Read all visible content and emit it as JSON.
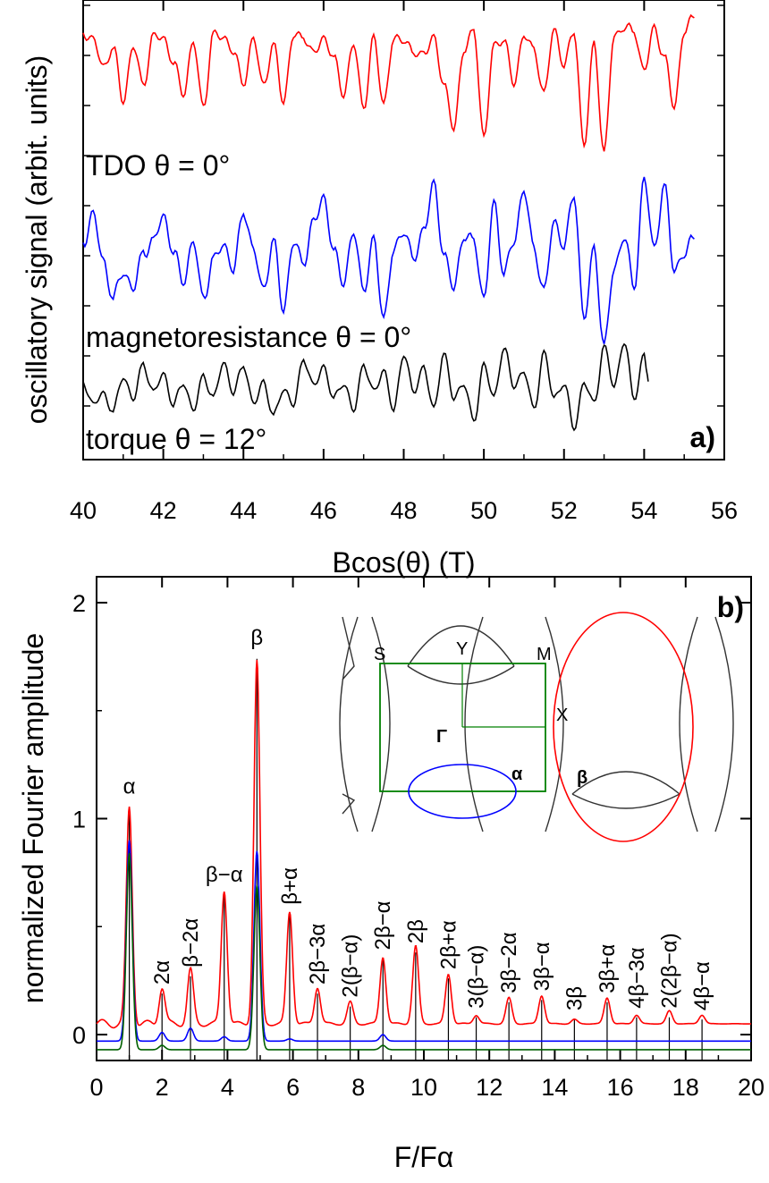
{
  "chart_data": [
    {
      "panel": "a)",
      "type": "line",
      "xlabel": "Bcos(θ) (T)",
      "ylabel": "oscillatory signal (arbit. units)",
      "xlim": [
        40,
        56
      ],
      "xticks": [
        "40",
        "42",
        "44",
        "46",
        "48",
        "50",
        "52",
        "54",
        "56"
      ],
      "y_tick_labels_shown": false,
      "series": [
        {
          "name": "TDO θ = 0°",
          "color": "#ff0000",
          "x": [
            40.0,
            40.25,
            40.5,
            40.75,
            41.0,
            41.25,
            41.5,
            41.75,
            42.0,
            42.25,
            42.5,
            42.75,
            43.0,
            43.25,
            43.5,
            43.75,
            44.0,
            44.25,
            44.5,
            44.75,
            45.0,
            45.25,
            45.5,
            45.75,
            46.0,
            46.25,
            46.5,
            46.75,
            47.0,
            47.25,
            47.5,
            47.75,
            48.0,
            48.25,
            48.5,
            48.75,
            49.0,
            49.25,
            49.5,
            49.75,
            50.0,
            50.25,
            50.5,
            50.75,
            51.0,
            51.25,
            51.5,
            51.75,
            52.0,
            52.25,
            52.5,
            52.75,
            53.0,
            53.25,
            53.5,
            53.75,
            54.0,
            54.25,
            54.5,
            54.75,
            55.0,
            55.25
          ],
          "y": [
            0.95,
            0.9,
            0.72,
            0.85,
            0.5,
            0.86,
            0.6,
            0.92,
            0.92,
            0.75,
            0.55,
            0.88,
            0.45,
            0.93,
            0.93,
            0.82,
            0.62,
            0.9,
            0.6,
            0.86,
            0.5,
            0.93,
            0.93,
            0.8,
            0.92,
            0.78,
            0.55,
            0.87,
            0.45,
            0.9,
            0.48,
            0.9,
            0.92,
            0.8,
            0.82,
            0.9,
            0.62,
            0.3,
            0.85,
            0.95,
            0.25,
            0.85,
            0.92,
            0.6,
            0.95,
            0.82,
            0.55,
            0.96,
            0.75,
            0.95,
            0.2,
            0.86,
            0.15,
            0.92,
            1.0,
            0.95,
            0.7,
            0.97,
            0.8,
            0.45,
            0.97,
            1.05
          ]
        },
        {
          "name": "magnetoresistance θ = 0°",
          "color": "#0000ff",
          "x": [
            40.0,
            40.25,
            40.5,
            40.75,
            41.0,
            41.25,
            41.5,
            41.75,
            42.0,
            42.25,
            42.5,
            42.75,
            43.0,
            43.25,
            43.5,
            43.75,
            44.0,
            44.25,
            44.5,
            44.75,
            45.0,
            45.25,
            45.5,
            45.75,
            46.0,
            46.25,
            46.5,
            46.75,
            47.0,
            47.25,
            47.5,
            47.75,
            48.0,
            48.25,
            48.5,
            48.75,
            49.0,
            49.25,
            49.5,
            49.75,
            50.0,
            50.25,
            50.5,
            50.75,
            51.0,
            51.25,
            51.5,
            51.75,
            52.0,
            52.25,
            52.5,
            52.75,
            53.0,
            53.25,
            53.5,
            53.75,
            54.0,
            54.25,
            54.5,
            54.75,
            55.0,
            55.25
          ],
          "y": [
            0.6,
            0.75,
            0.5,
            0.3,
            0.45,
            0.35,
            0.55,
            0.6,
            0.75,
            0.55,
            0.4,
            0.6,
            0.3,
            0.5,
            0.6,
            0.45,
            0.78,
            0.55,
            0.35,
            0.6,
            0.25,
            0.6,
            0.5,
            0.7,
            0.85,
            0.55,
            0.4,
            0.65,
            0.35,
            0.6,
            0.2,
            0.55,
            0.68,
            0.5,
            0.68,
            0.9,
            0.55,
            0.35,
            0.65,
            0.6,
            0.3,
            0.8,
            0.45,
            0.6,
            0.9,
            0.55,
            0.35,
            0.7,
            0.6,
            0.85,
            0.2,
            0.55,
            0.05,
            0.45,
            0.65,
            0.35,
            0.95,
            0.55,
            0.92,
            0.45,
            0.55,
            0.62
          ]
        },
        {
          "name": "torque θ = 12°",
          "color": "#000000",
          "x": [
            40.0,
            40.25,
            40.5,
            40.75,
            41.0,
            41.25,
            41.5,
            41.75,
            42.0,
            42.25,
            42.5,
            42.75,
            43.0,
            43.25,
            43.5,
            43.75,
            44.0,
            44.25,
            44.5,
            44.75,
            45.0,
            45.25,
            45.5,
            45.75,
            46.0,
            46.25,
            46.5,
            46.75,
            47.0,
            47.25,
            47.5,
            47.75,
            48.0,
            48.25,
            48.5,
            48.75,
            49.0,
            49.25,
            49.5,
            49.75,
            50.0,
            50.25,
            50.5,
            50.75,
            51.0,
            51.25,
            51.5,
            51.75,
            52.0,
            52.25,
            52.5,
            52.75,
            53.0,
            53.25,
            53.5,
            53.75,
            54.0,
            54.1
          ],
          "y": [
            0.55,
            0.35,
            0.45,
            0.3,
            0.6,
            0.4,
            0.7,
            0.45,
            0.62,
            0.35,
            0.55,
            0.3,
            0.6,
            0.4,
            0.72,
            0.45,
            0.7,
            0.35,
            0.55,
            0.25,
            0.5,
            0.35,
            0.75,
            0.5,
            0.68,
            0.4,
            0.55,
            0.3,
            0.7,
            0.45,
            0.65,
            0.3,
            0.8,
            0.45,
            0.68,
            0.3,
            0.8,
            0.4,
            0.55,
            0.2,
            0.7,
            0.4,
            0.85,
            0.5,
            0.65,
            0.3,
            0.8,
            0.4,
            0.55,
            0.15,
            0.55,
            0.35,
            0.85,
            0.5,
            0.9,
            0.4,
            0.78,
            0.55
          ]
        }
      ]
    },
    {
      "panel": "b)",
      "type": "line",
      "xlabel": "F/Fα",
      "ylabel": "normalized Fourier amplitude",
      "xlim": [
        0,
        20
      ],
      "ylim": [
        -0.12,
        2.12
      ],
      "xticks": [
        "0",
        "2",
        "4",
        "6",
        "8",
        "10",
        "12",
        "14",
        "16",
        "18",
        "20"
      ],
      "yticks": [
        "0",
        "1",
        "2"
      ],
      "series": [
        {
          "color": "#ff0000",
          "baseline": 0.05,
          "peaks": [
            [
              1,
              1.0
            ],
            [
              2,
              0.17
            ],
            [
              2.87,
              0.25
            ],
            [
              3.9,
              0.62
            ],
            [
              4.9,
              1.68
            ],
            [
              5.9,
              0.52
            ],
            [
              6.75,
              0.17
            ],
            [
              7.75,
              0.1
            ],
            [
              8.75,
              0.31
            ],
            [
              9.75,
              0.36
            ],
            [
              10.75,
              0.23
            ],
            [
              11.6,
              0.04
            ],
            [
              12.6,
              0.12
            ],
            [
              13.6,
              0.13
            ],
            [
              14.6,
              0.02
            ],
            [
              15.6,
              0.12
            ],
            [
              16.5,
              0.04
            ],
            [
              17.5,
              0.06
            ],
            [
              18.5,
              0.04
            ]
          ]
        },
        {
          "color": "#0000ff",
          "baseline": -0.03,
          "peaks": [
            [
              1,
              0.93
            ],
            [
              2,
              0.04
            ],
            [
              2.87,
              0.06
            ],
            [
              3.9,
              0.02
            ],
            [
              4.9,
              0.88
            ],
            [
              5.9,
              0.01
            ],
            [
              8.75,
              0.03
            ]
          ]
        },
        {
          "color": "#006000",
          "baseline": -0.07,
          "peaks": [
            [
              1,
              0.91
            ],
            [
              2,
              0.02
            ],
            [
              4.9,
              0.76
            ],
            [
              8.75,
              0.02
            ]
          ]
        }
      ],
      "peak_labels": [
        {
          "x": 1,
          "label": "α",
          "y": 1.05
        },
        {
          "x": 2,
          "label": "2α",
          "y": 0.19
        },
        {
          "x": 2.87,
          "label": "β−2α",
          "y": 0.27
        },
        {
          "x": 3.9,
          "label": "β−α",
          "y": 0.65
        },
        {
          "x": 4.9,
          "label": "β",
          "y": 1.74
        },
        {
          "x": 5.9,
          "label": "β+α",
          "y": 0.56
        },
        {
          "x": 6.75,
          "label": "2β−3α",
          "y": 0.19
        },
        {
          "x": 7.75,
          "label": "2(β−α)",
          "y": 0.13
        },
        {
          "x": 8.75,
          "label": "2β−α",
          "y": 0.35
        },
        {
          "x": 9.75,
          "label": "2β",
          "y": 0.38
        },
        {
          "x": 10.75,
          "label": "2β+α",
          "y": 0.26
        },
        {
          "x": 11.6,
          "label": "3(β−α)",
          "y": 0.08
        },
        {
          "x": 12.6,
          "label": "3β−2α",
          "y": 0.15
        },
        {
          "x": 13.6,
          "label": "3β−α",
          "y": 0.16
        },
        {
          "x": 14.6,
          "label": "3β",
          "y": 0.07
        },
        {
          "x": 15.6,
          "label": "3β+α",
          "y": 0.15
        },
        {
          "x": 16.5,
          "label": "4β−3α",
          "y": 0.08
        },
        {
          "x": 17.5,
          "label": "2(2β−α)",
          "y": 0.08
        },
        {
          "x": 18.5,
          "label": "4β−α",
          "y": 0.07
        }
      ],
      "inset": {
        "labels": {
          "S": "S",
          "Y": "Y",
          "M": "M",
          "X": "X",
          "gamma": "Γ",
          "alpha": "α",
          "beta": "β"
        },
        "colors": {
          "brillouin_zone": "#008000",
          "alpha_orbit": "#0000ff",
          "beta_orbit": "#ff0000",
          "fermi_surface": "#333333"
        }
      }
    }
  ]
}
